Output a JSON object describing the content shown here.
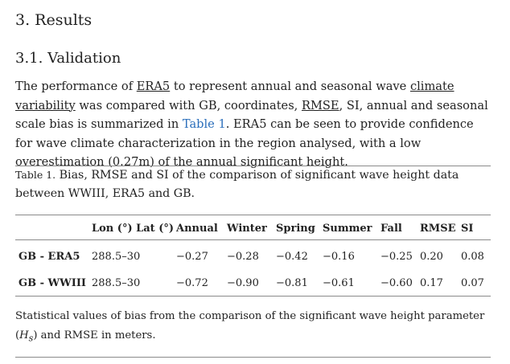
{
  "section_title": "3. Results",
  "subsection_title": "3.1. Validation",
  "paragraph": {
    "p1": "The performance of ",
    "era5": "ERA5",
    "p2": " to represent annual and seasonal wave ",
    "climate_variability": "climate variability",
    "p3": " was compared with GB, coordinates, ",
    "rmse": "RMSE",
    "p4": ", SI, annual and seasonal scale bias is summarized in ",
    "table_ref": "Table 1",
    "p5": ". ERA5 can be seen to provide confidence for wave climate characterization in the region analysed, with a low overestimation (0.27m) of the annual significant height."
  },
  "table_caption": {
    "label": "Table 1.",
    "text": " Bias, RMSE and SI of the comparison of significant wave height data between WWIII, ERA5 and GB."
  },
  "table": {
    "headers": [
      "",
      "Lon (°) Lat (°)",
      "Annual",
      "Winter",
      "Spring",
      "Summer",
      "Fall",
      "RMSE",
      "SI"
    ],
    "rows": [
      [
        "GB - ERA5",
        "288.5–30",
        "−0.27",
        "−0.28",
        "−0.42",
        "−0.16",
        "−0.25",
        "0.20",
        "0.08"
      ],
      [
        "GB - WWIII",
        "288.5–30",
        "−0.72",
        "−0.90",
        "−0.81",
        "−0.61",
        "−0.60",
        "0.17",
        "0.07"
      ]
    ]
  },
  "table_footnote": {
    "t1": "Statistical values of bias from the comparison of the significant wave height parameter (",
    "symbol": "H",
    "subscript": "s",
    "t2": ") and RMSE in meters."
  }
}
